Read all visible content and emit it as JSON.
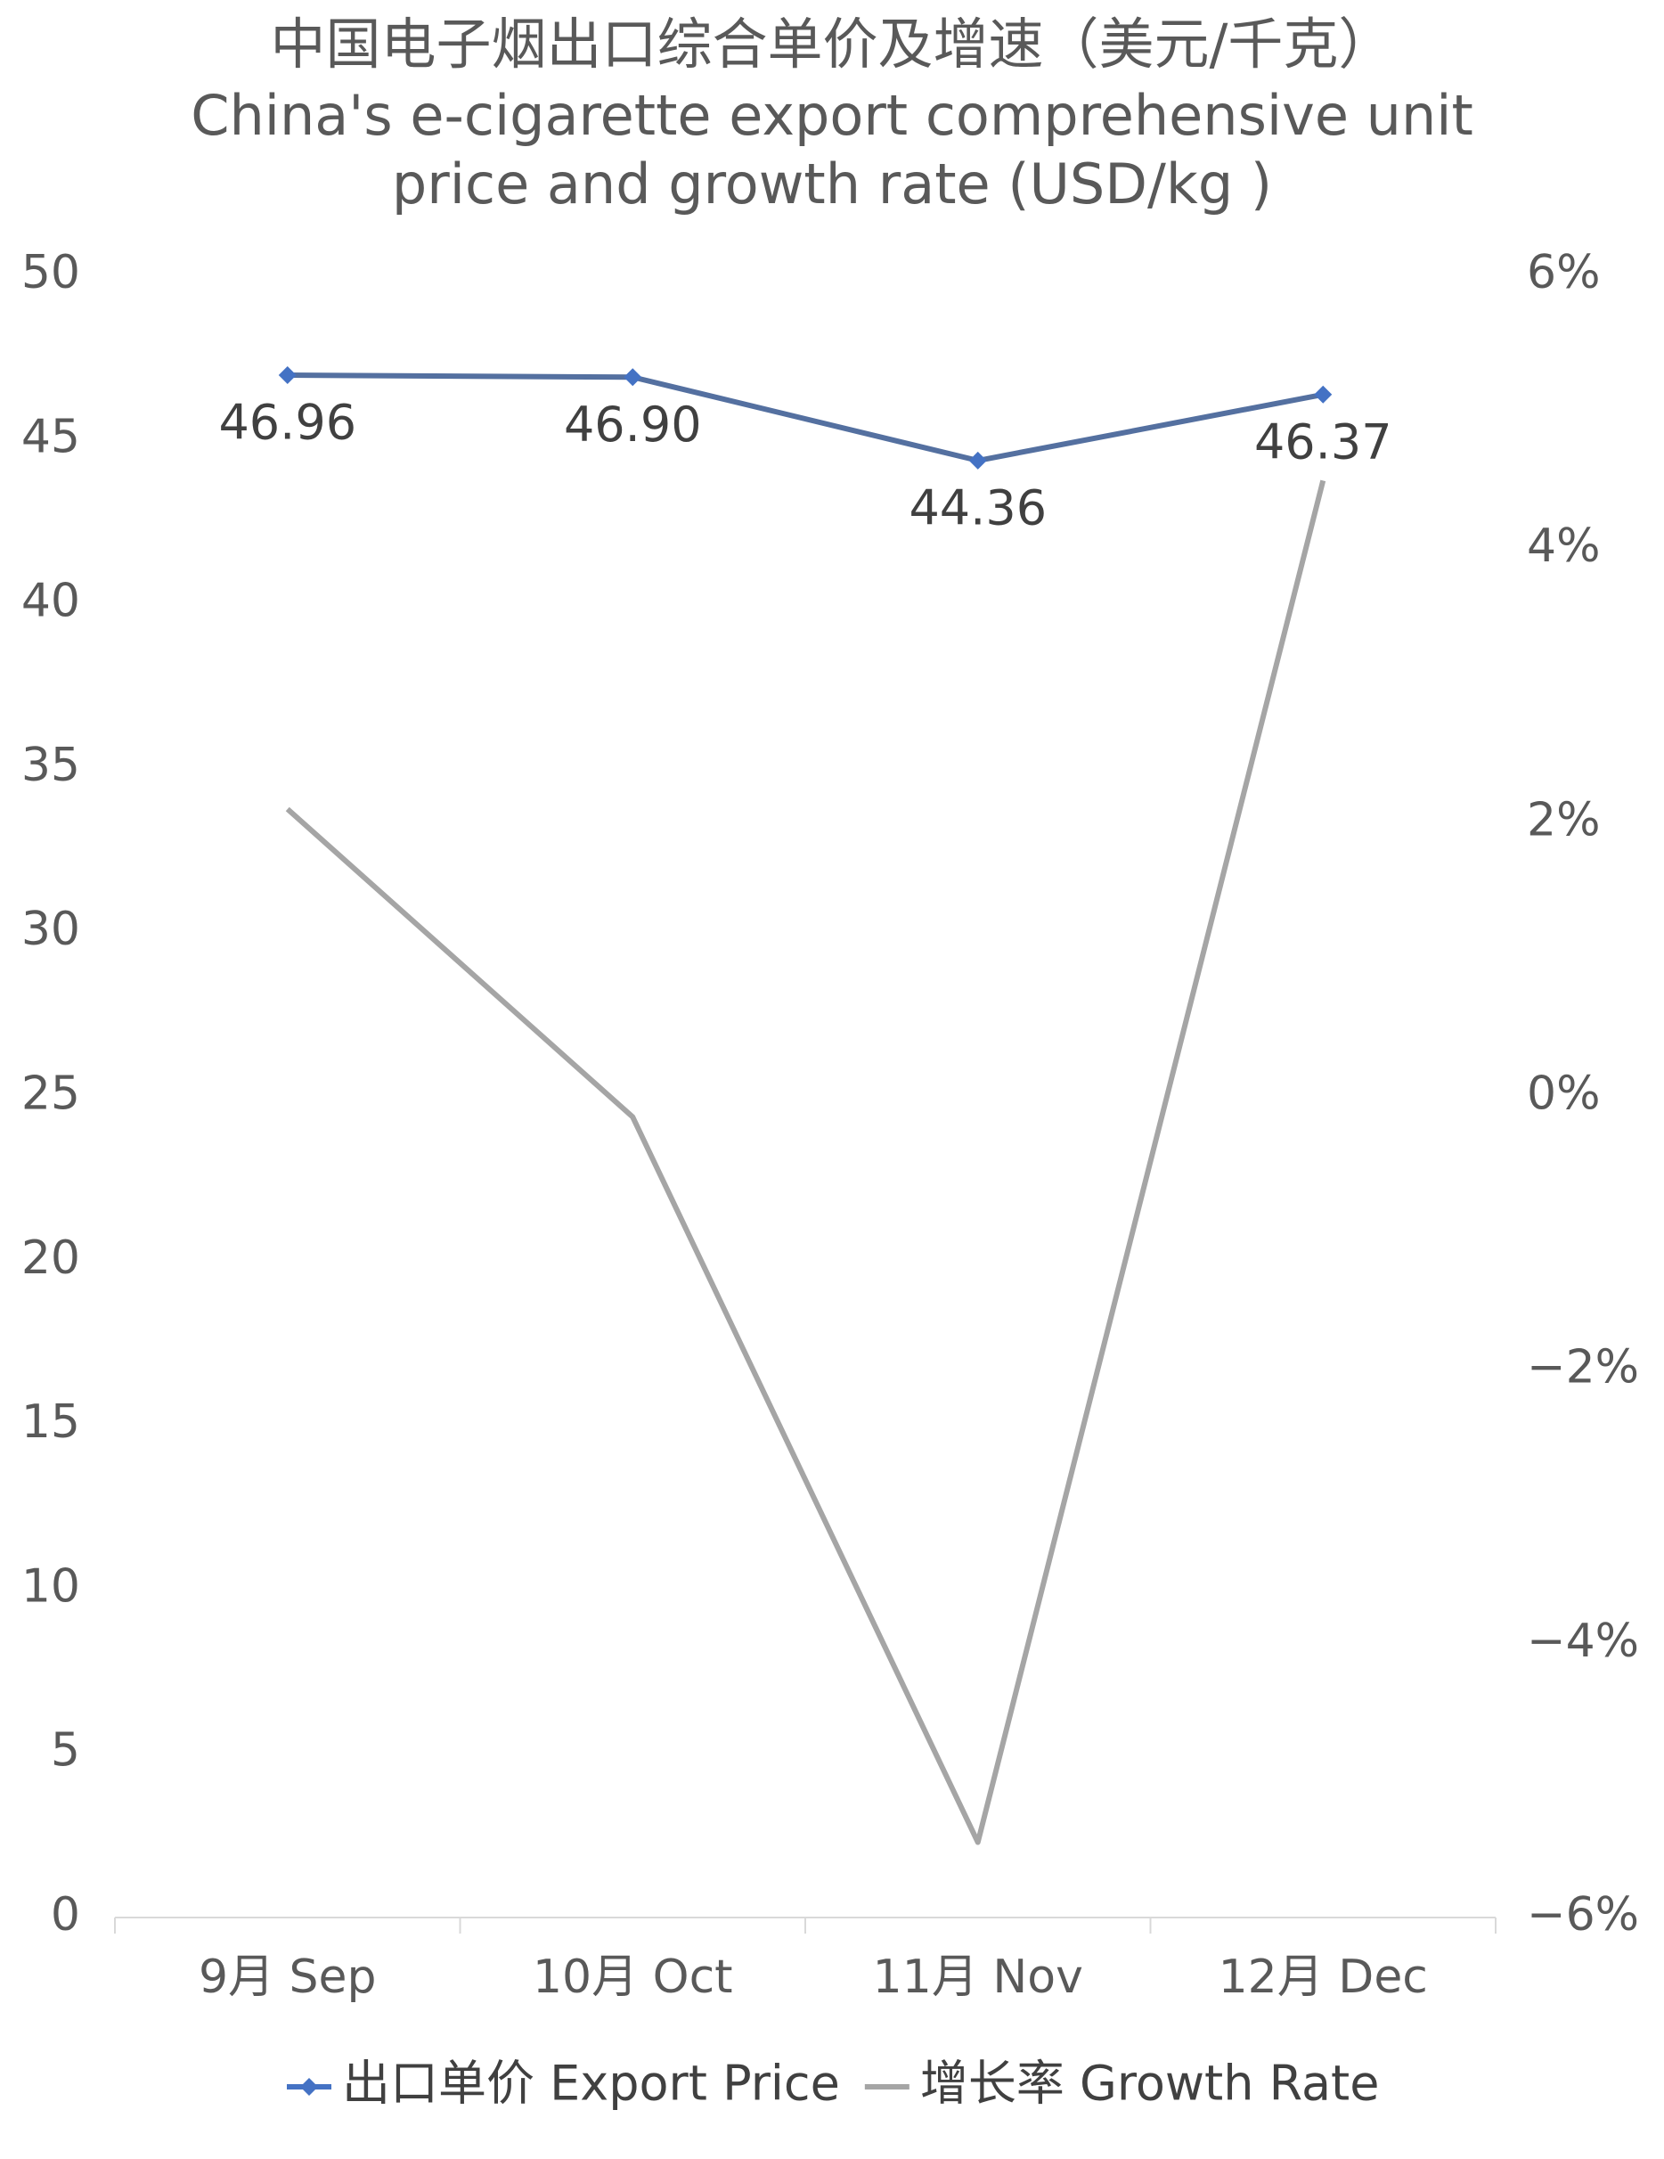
{
  "chart_data": {
    "type": "line",
    "title": [
      "中国电子烟出口综合单价及增速（美元/千克）",
      "China's e-cigarette export comprehensive unit",
      "price and growth rate (USD/kg )"
    ],
    "categories": [
      "9月 Sep",
      "10月 Oct",
      "11月 Nov",
      "12月 Dec"
    ],
    "series": [
      {
        "name": "出口单价 Export Price",
        "color": "#4472c4",
        "values": [
          46.96,
          46.9,
          44.36,
          46.37
        ],
        "value_labels": [
          "46.96",
          "46.90",
          "44.36",
          "46.37"
        ],
        "marker": "diamond"
      },
      {
        "name": "增长率 Growth Rate",
        "color": "#a5a5a5",
        "values": [
          2.1,
          -0.15,
          -5.45,
          4.5
        ],
        "axis": "y2"
      }
    ],
    "ylim": [
      0,
      50
    ],
    "yticks": [
      0,
      5,
      10,
      15,
      20,
      25,
      30,
      35,
      40,
      45,
      50
    ],
    "y2lim": [
      -6,
      6
    ],
    "y2ticks": [
      {
        "value": -6,
        "label": "−6%"
      },
      {
        "value": -4,
        "label": "−4%"
      },
      {
        "value": -2,
        "label": "−2%"
      },
      {
        "value": 0,
        "label": "0%"
      },
      {
        "value": 2,
        "label": "2%"
      },
      {
        "value": 4,
        "label": "4%"
      },
      {
        "value": 6,
        "label": "6%"
      }
    ],
    "grid": false,
    "legend": "bottom"
  }
}
